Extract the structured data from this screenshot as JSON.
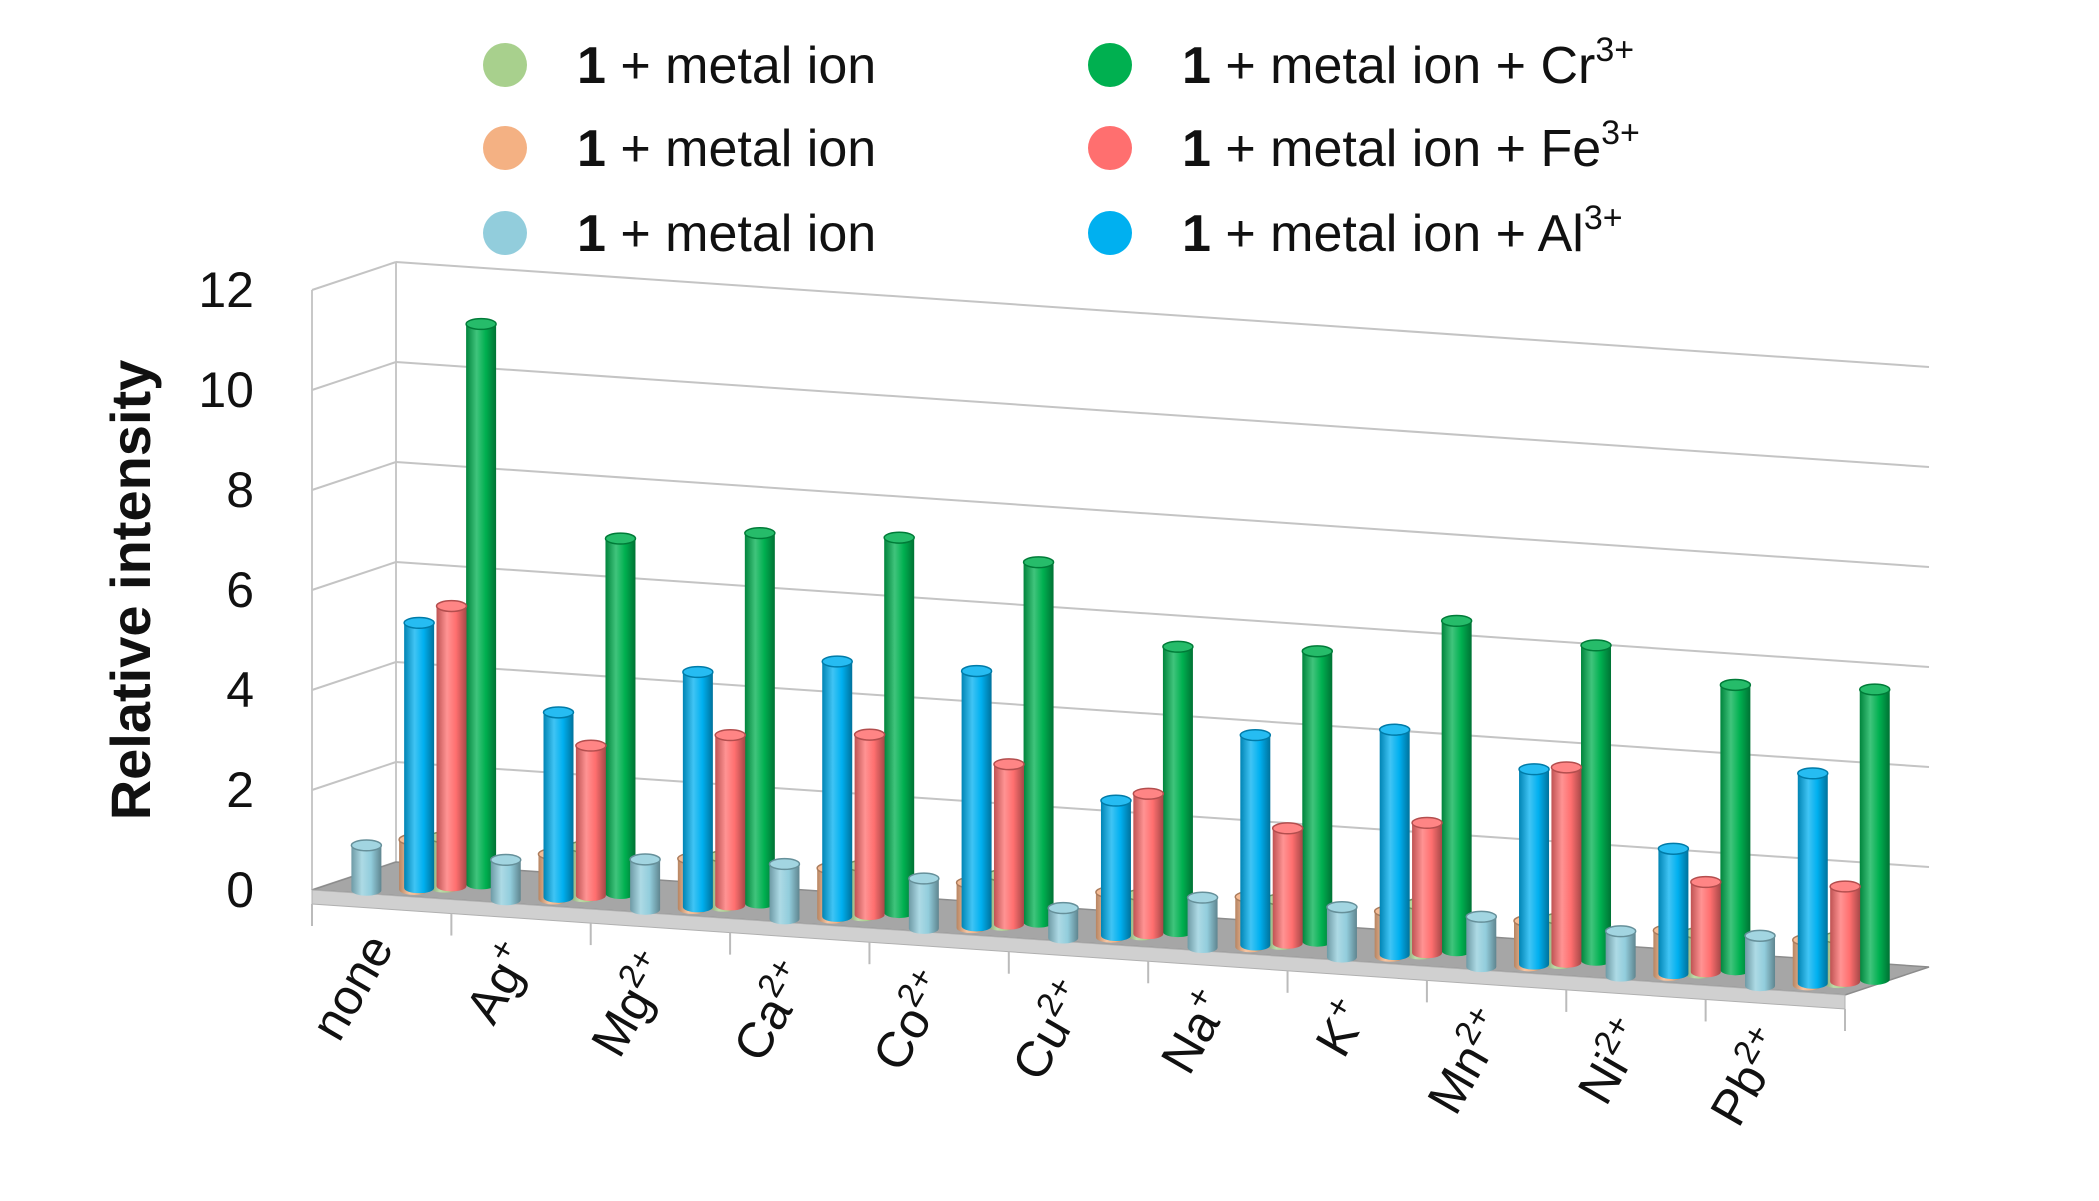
{
  "chart_data": {
    "type": "bar",
    "style": "3d-cylinder",
    "title": "",
    "xlabel": "",
    "ylabel": "Relative intensity",
    "ylim": [
      0,
      12
    ],
    "yticks": [
      "0",
      "2",
      "4",
      "6",
      "8",
      "10",
      "12"
    ],
    "grid": true,
    "legend_position": "top",
    "categories": [
      {
        "base": "none",
        "sup": ""
      },
      {
        "base": "Ag",
        "sup": "+"
      },
      {
        "base": "Mg",
        "sup": "2+"
      },
      {
        "base": "Ca",
        "sup": "2+"
      },
      {
        "base": "Co",
        "sup": "2+"
      },
      {
        "base": "Cu",
        "sup": "2+"
      },
      {
        "base": "Na",
        "sup": "+"
      },
      {
        "base": "K",
        "sup": "+"
      },
      {
        "base": "Mn",
        "sup": "2+"
      },
      {
        "base": "Ni",
        "sup": "2+"
      },
      {
        "base": "Pb",
        "sup": "2+"
      }
    ],
    "series": [
      {
        "name": "1 + metal ion",
        "compound": "1",
        "rest": " + metal ion",
        "sup": "",
        "color": "#a8d08d",
        "values": [
          1.0,
          1.0,
          1.0,
          1.0,
          1.0,
          0.8,
          0.9,
          1.0,
          0.9,
          0.8,
          0.9
        ]
      },
      {
        "name": "1 + metal ion",
        "compound": "1",
        "rest": " + metal ion",
        "sup": "",
        "color": "#f4b183",
        "values": [
          1.0,
          0.9,
          1.0,
          1.0,
          0.9,
          0.9,
          1.0,
          0.9,
          0.9,
          0.9,
          0.9
        ]
      },
      {
        "name": "1 + metal ion",
        "compound": "1",
        "rest": " + metal ion",
        "sup": "",
        "color": "#92cddc",
        "values": [
          0.9,
          0.8,
          1.0,
          1.1,
          1.0,
          0.6,
          1.0,
          1.0,
          1.0,
          0.9,
          1.0
        ]
      },
      {
        "name": "1 + metal ion + Cr3+",
        "compound": "1",
        "rest": " + metal ion + Cr",
        "sup": "3+",
        "color": "#00b050",
        "values": [
          11.2,
          7.1,
          7.4,
          7.5,
          7.2,
          5.7,
          5.8,
          6.6,
          6.3,
          5.7,
          5.8
        ]
      },
      {
        "name": "1 + metal ion + Fe3+",
        "compound": "1",
        "rest": " + metal ion + Fe",
        "sup": "3+",
        "color": "#ff6f6f",
        "values": [
          5.6,
          3.0,
          3.4,
          3.6,
          3.2,
          2.8,
          2.3,
          2.6,
          3.9,
          1.8,
          1.9
        ]
      },
      {
        "name": "1 + metal ion + Al3+",
        "compound": "1",
        "rest": " + metal ion + Al",
        "sup": "3+",
        "color": "#00b0f0",
        "values": [
          5.3,
          3.7,
          4.7,
          5.1,
          5.1,
          2.7,
          4.2,
          4.5,
          3.9,
          2.5,
          4.2
        ]
      }
    ]
  }
}
